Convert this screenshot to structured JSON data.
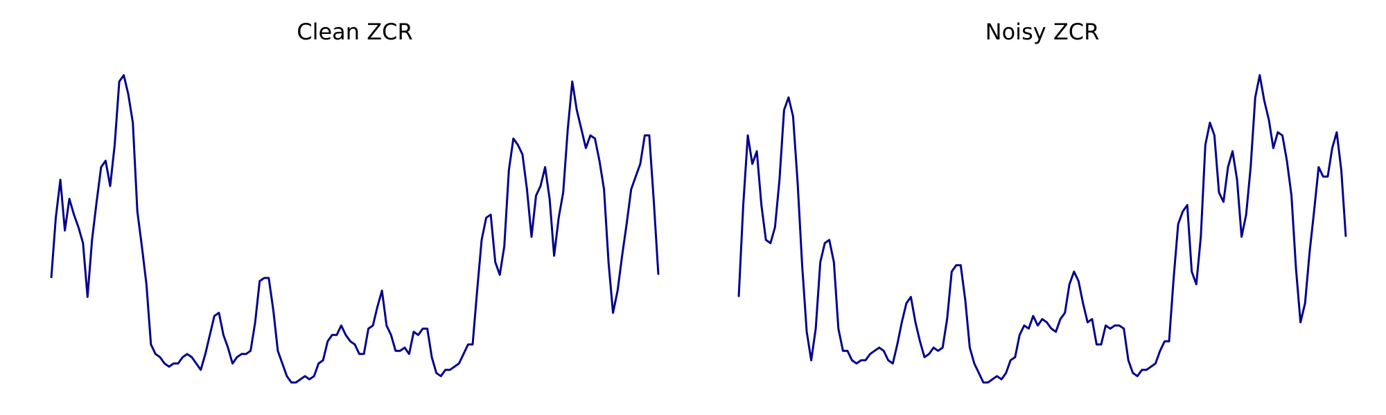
{
  "colors": {
    "line": "#00008b",
    "background": "#ffffff"
  },
  "chart_data": [
    {
      "type": "line",
      "title": "Clean ZCR",
      "xlabel": "",
      "ylabel": "",
      "axes_visible": false,
      "grid": false,
      "ylim": [
        0.0,
        1.0
      ],
      "series": [
        {
          "values": [
            0.33,
            0.52,
            0.64,
            0.48,
            0.58,
            0.53,
            0.49,
            0.44,
            0.27,
            0.45,
            0.57,
            0.68,
            0.7,
            0.62,
            0.75,
            0.95,
            0.97,
            0.91,
            0.82,
            0.54,
            0.43,
            0.31,
            0.12,
            0.09,
            0.08,
            0.06,
            0.05,
            0.06,
            0.06,
            0.08,
            0.09,
            0.08,
            0.06,
            0.04,
            0.09,
            0.15,
            0.21,
            0.22,
            0.15,
            0.11,
            0.06,
            0.08,
            0.09,
            0.09,
            0.1,
            0.19,
            0.32,
            0.33,
            0.33,
            0.23,
            0.1,
            0.06,
            0.02,
            0.0,
            0.0,
            0.01,
            0.02,
            0.01,
            0.02,
            0.06,
            0.07,
            0.13,
            0.15,
            0.15,
            0.18,
            0.15,
            0.13,
            0.12,
            0.09,
            0.09,
            0.17,
            0.18,
            0.24,
            0.29,
            0.18,
            0.15,
            0.1,
            0.1,
            0.11,
            0.09,
            0.16,
            0.15,
            0.17,
            0.17,
            0.08,
            0.03,
            0.02,
            0.04,
            0.04,
            0.05,
            0.06,
            0.09,
            0.12,
            0.12,
            0.29,
            0.45,
            0.52,
            0.53,
            0.38,
            0.34,
            0.43,
            0.67,
            0.77,
            0.75,
            0.72,
            0.61,
            0.46,
            0.59,
            0.62,
            0.68,
            0.58,
            0.4,
            0.52,
            0.6,
            0.8,
            0.95,
            0.86,
            0.8,
            0.74,
            0.78,
            0.77,
            0.7,
            0.61,
            0.38,
            0.22,
            0.29,
            0.4,
            0.5,
            0.61,
            0.65,
            0.69,
            0.78,
            0.78,
            0.57,
            0.34
          ]
        }
      ]
    },
    {
      "type": "line",
      "title": "Noisy ZCR",
      "xlabel": "",
      "ylabel": "",
      "axes_visible": false,
      "grid": false,
      "ylim": [
        0.0,
        1.0
      ],
      "series": [
        {
          "values": [
            0.27,
            0.56,
            0.78,
            0.69,
            0.73,
            0.56,
            0.45,
            0.44,
            0.49,
            0.64,
            0.86,
            0.9,
            0.84,
            0.63,
            0.37,
            0.16,
            0.07,
            0.17,
            0.38,
            0.44,
            0.45,
            0.38,
            0.17,
            0.1,
            0.1,
            0.07,
            0.06,
            0.07,
            0.07,
            0.09,
            0.1,
            0.11,
            0.1,
            0.07,
            0.06,
            0.12,
            0.19,
            0.25,
            0.27,
            0.19,
            0.13,
            0.08,
            0.09,
            0.11,
            0.1,
            0.11,
            0.2,
            0.35,
            0.37,
            0.37,
            0.26,
            0.11,
            0.06,
            0.03,
            0.0,
            0.0,
            0.01,
            0.02,
            0.01,
            0.03,
            0.07,
            0.08,
            0.15,
            0.18,
            0.17,
            0.21,
            0.18,
            0.2,
            0.19,
            0.17,
            0.16,
            0.2,
            0.22,
            0.31,
            0.35,
            0.32,
            0.25,
            0.19,
            0.2,
            0.12,
            0.12,
            0.18,
            0.17,
            0.18,
            0.18,
            0.17,
            0.07,
            0.03,
            0.02,
            0.04,
            0.04,
            0.05,
            0.06,
            0.1,
            0.13,
            0.13,
            0.33,
            0.5,
            0.54,
            0.56,
            0.35,
            0.31,
            0.46,
            0.75,
            0.82,
            0.78,
            0.6,
            0.57,
            0.68,
            0.73,
            0.64,
            0.46,
            0.53,
            0.68,
            0.9,
            0.97,
            0.89,
            0.83,
            0.74,
            0.79,
            0.78,
            0.7,
            0.59,
            0.36,
            0.19,
            0.25,
            0.41,
            0.54,
            0.68,
            0.65,
            0.65,
            0.74,
            0.79,
            0.67,
            0.46
          ]
        }
      ]
    }
  ]
}
